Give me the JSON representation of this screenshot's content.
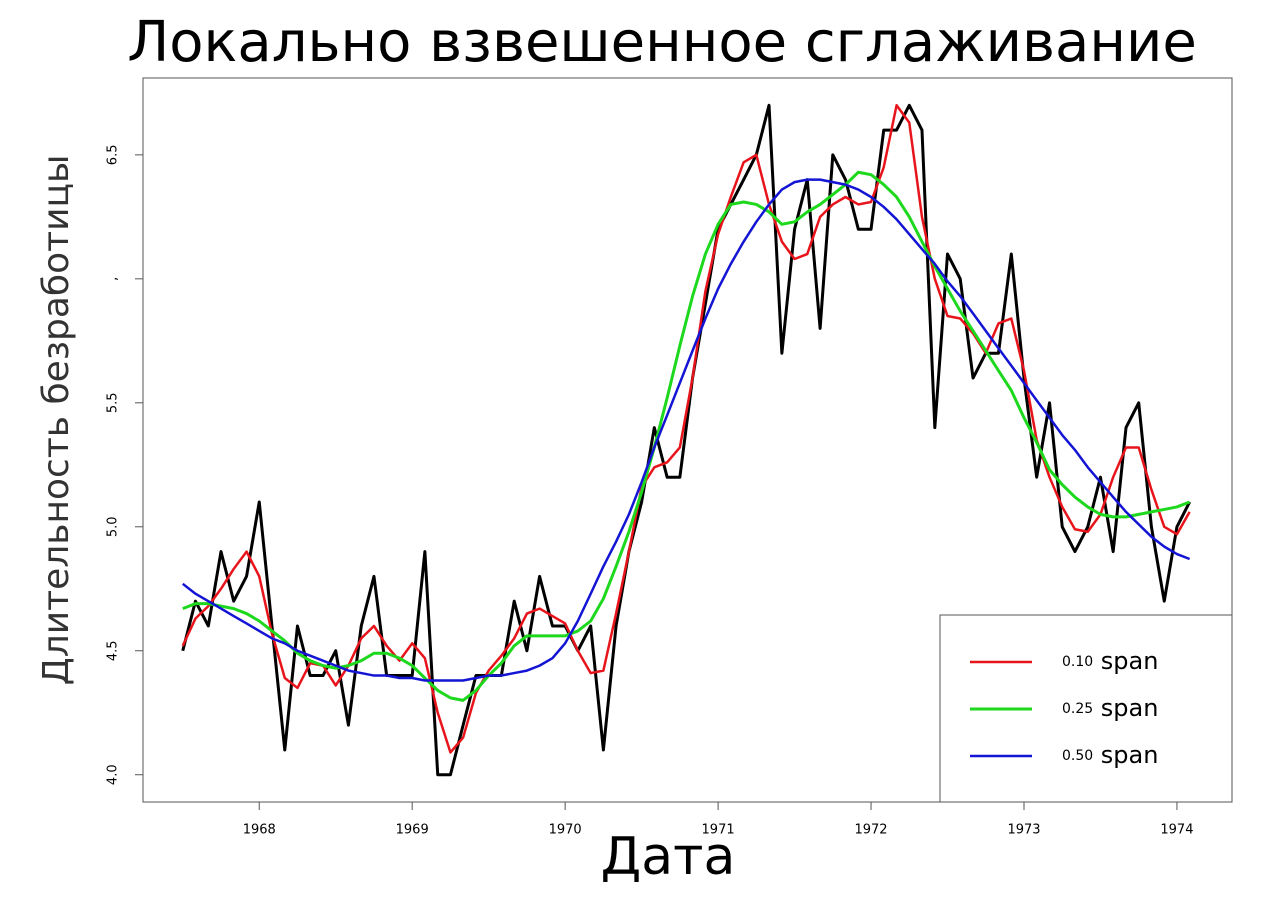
{
  "chart_data": {
    "type": "line",
    "title": "Локально взвешенное сглаживание",
    "x_label": "Дата",
    "y_label": "Длительность безработицы",
    "x": [
      1967.5,
      1967.583,
      1967.667,
      1967.75,
      1967.833,
      1967.917,
      1968,
      1968.083,
      1968.167,
      1968.25,
      1968.333,
      1968.417,
      1968.5,
      1968.583,
      1968.667,
      1968.75,
      1968.833,
      1968.917,
      1969,
      1969.083,
      1969.167,
      1969.25,
      1969.333,
      1969.417,
      1969.5,
      1969.583,
      1969.667,
      1969.75,
      1969.833,
      1969.917,
      1970,
      1970.083,
      1970.167,
      1970.25,
      1970.333,
      1970.417,
      1970.5,
      1970.583,
      1970.667,
      1970.75,
      1970.833,
      1970.917,
      1971,
      1971.083,
      1971.167,
      1971.25,
      1971.333,
      1971.417,
      1971.5,
      1971.583,
      1971.667,
      1971.75,
      1971.833,
      1971.917,
      1972,
      1972.083,
      1972.167,
      1972.25,
      1972.333,
      1972.417,
      1972.5,
      1972.583,
      1972.667,
      1972.75,
      1972.833,
      1972.917,
      1973,
      1973.083,
      1973.167,
      1973.25,
      1973.333,
      1973.417,
      1973.5,
      1973.583,
      1973.667,
      1973.75,
      1973.833,
      1973.917,
      1974,
      1974.083
    ],
    "series": [
      {
        "color": "#000000",
        "width": 3,
        "values": [
          4.5,
          4.7,
          4.6,
          4.9,
          4.7,
          4.8,
          5.1,
          4.6,
          4.1,
          4.6,
          4.4,
          4.4,
          4.5,
          4.2,
          4.6,
          4.8,
          4.4,
          4.4,
          4.4,
          4.9,
          4.0,
          4.0,
          4.2,
          4.4,
          4.4,
          4.4,
          4.7,
          4.5,
          4.8,
          4.6,
          4.6,
          4.5,
          4.6,
          4.1,
          4.6,
          4.9,
          5.1,
          5.4,
          5.2,
          5.2,
          5.6,
          5.9,
          6.2,
          6.3,
          6.4,
          6.5,
          6.7,
          5.7,
          6.2,
          6.4,
          5.8,
          6.5,
          6.4,
          6.2,
          6.2,
          6.6,
          6.6,
          6.7,
          6.6,
          5.4,
          6.1,
          6.0,
          5.6,
          5.7,
          5.7,
          6.1,
          5.6,
          5.2,
          5.5,
          5.0,
          4.9,
          5.0,
          5.2,
          4.9,
          5.4,
          5.5,
          5.0,
          4.7,
          5.0,
          5.1
        ]
      },
      {
        "name": "0.10 span",
        "color": "#e8141b",
        "width": 2.5,
        "values": [
          4.52,
          4.63,
          4.68,
          4.75,
          4.83,
          4.9,
          4.8,
          4.57,
          4.39,
          4.35,
          4.45,
          4.44,
          4.36,
          4.44,
          4.55,
          4.6,
          4.52,
          4.46,
          4.53,
          4.47,
          4.25,
          4.09,
          4.15,
          4.33,
          4.42,
          4.48,
          4.55,
          4.65,
          4.67,
          4.64,
          4.61,
          4.5,
          4.41,
          4.42,
          4.65,
          4.9,
          5.16,
          5.24,
          5.26,
          5.32,
          5.6,
          5.95,
          6.18,
          6.33,
          6.47,
          6.5,
          6.3,
          6.15,
          6.08,
          6.1,
          6.25,
          6.3,
          6.33,
          6.3,
          6.31,
          6.45,
          6.7,
          6.63,
          6.25,
          6.0,
          5.85,
          5.84,
          5.78,
          5.7,
          5.82,
          5.84,
          5.63,
          5.35,
          5.2,
          5.08,
          4.99,
          4.98,
          5.05,
          5.2,
          5.32,
          5.32,
          5.15,
          5.0,
          4.97,
          5.06
        ]
      },
      {
        "name": "0.25 span",
        "color": "#1ed81e",
        "width": 3,
        "values": [
          4.67,
          4.69,
          4.69,
          4.68,
          4.67,
          4.65,
          4.62,
          4.58,
          4.54,
          4.49,
          4.46,
          4.44,
          4.43,
          4.44,
          4.46,
          4.49,
          4.49,
          4.47,
          4.44,
          4.39,
          4.34,
          4.31,
          4.3,
          4.34,
          4.4,
          4.45,
          4.52,
          4.56,
          4.56,
          4.56,
          4.56,
          4.58,
          4.62,
          4.71,
          4.84,
          4.98,
          5.14,
          5.32,
          5.52,
          5.73,
          5.93,
          6.1,
          6.22,
          6.3,
          6.31,
          6.3,
          6.27,
          6.22,
          6.23,
          6.27,
          6.3,
          6.34,
          6.38,
          6.43,
          6.42,
          6.38,
          6.33,
          6.25,
          6.15,
          6.05,
          5.96,
          5.87,
          5.79,
          5.71,
          5.63,
          5.55,
          5.44,
          5.34,
          5.23,
          5.17,
          5.12,
          5.08,
          5.05,
          5.04,
          5.04,
          5.05,
          5.06,
          5.07,
          5.08,
          5.1
        ]
      },
      {
        "name": "0.50 span",
        "color": "#1414d4",
        "width": 2.5,
        "values": [
          4.77,
          4.73,
          4.7,
          4.67,
          4.64,
          4.61,
          4.58,
          4.55,
          4.53,
          4.5,
          4.48,
          4.46,
          4.44,
          4.42,
          4.41,
          4.4,
          4.4,
          4.39,
          4.39,
          4.38,
          4.38,
          4.38,
          4.38,
          4.39,
          4.4,
          4.4,
          4.41,
          4.42,
          4.44,
          4.47,
          4.53,
          4.62,
          4.73,
          4.84,
          4.94,
          5.05,
          5.18,
          5.32,
          5.45,
          5.58,
          5.71,
          5.84,
          5.96,
          6.06,
          6.15,
          6.23,
          6.3,
          6.36,
          6.39,
          6.4,
          6.4,
          6.39,
          6.38,
          6.36,
          6.33,
          6.29,
          6.24,
          6.18,
          6.12,
          6.06,
          5.99,
          5.93,
          5.86,
          5.79,
          5.72,
          5.65,
          5.58,
          5.51,
          5.44,
          5.37,
          5.31,
          5.24,
          5.18,
          5.12,
          5.06,
          5.01,
          4.96,
          4.92,
          4.89,
          4.87
        ]
      }
    ],
    "xlim": [
      1967.24,
      1974.36
    ],
    "xticks": [
      1968,
      1969,
      1970,
      1971,
      1972,
      1973,
      1974
    ],
    "ylim": [
      3.89,
      6.81
    ],
    "yticks": [
      {
        "value": 4,
        "label": "4.0"
      },
      4.5,
      {
        "value": 5,
        "label": "5.0"
      },
      5.5,
      {
        "value": 6,
        "label": ","
      },
      6.5
    ],
    "legend": "bottom-right"
  }
}
